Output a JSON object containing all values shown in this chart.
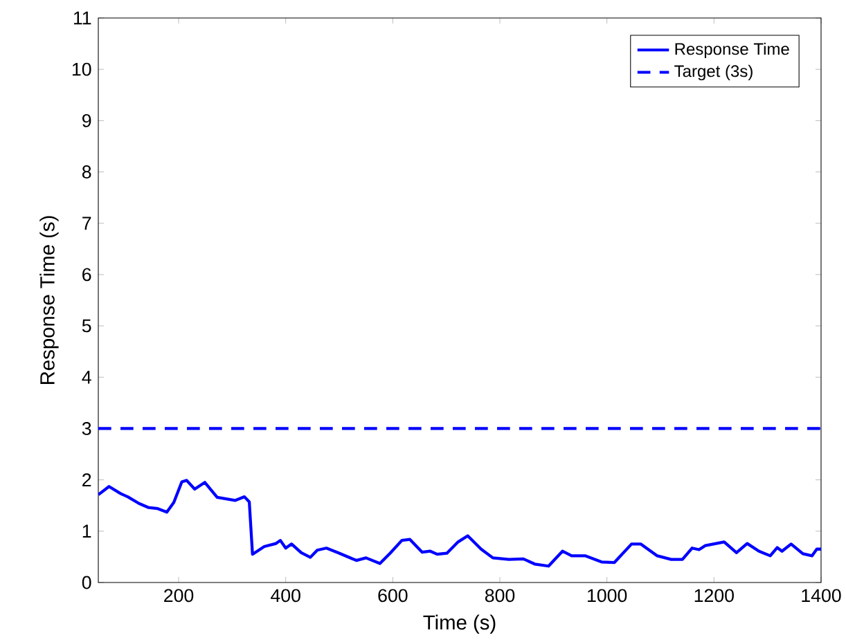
{
  "chart_data": {
    "type": "line",
    "xlabel": "Time (s)",
    "ylabel": "Response Time (s)",
    "xlim": [
      50,
      1400
    ],
    "ylim": [
      0,
      11
    ],
    "xticks": [
      200,
      400,
      600,
      800,
      1000,
      1200,
      1400
    ],
    "yticks": [
      0,
      1,
      2,
      3,
      4,
      5,
      6,
      7,
      8,
      9,
      10,
      11
    ],
    "grid": false,
    "legend": "top right",
    "marker": "none",
    "series": [
      {
        "name": "Response Time",
        "color": "#0000ff",
        "line_style": "solid",
        "x": [
          50,
          70,
          92,
          105,
          126,
          144,
          161,
          178,
          191,
          206,
          215,
          230,
          249,
          272,
          289,
          306,
          323,
          332,
          338,
          360,
          382,
          390,
          400,
          411,
          429,
          446,
          459,
          476,
          498,
          532,
          550,
          576,
          595,
          617,
          632,
          655,
          670,
          683,
          701,
          722,
          740,
          765,
          787,
          817,
          844,
          865,
          891,
          917,
          934,
          960,
          990,
          1014,
          1046,
          1063,
          1094,
          1120,
          1141,
          1159,
          1172,
          1184,
          1219,
          1242,
          1262,
          1284,
          1305,
          1318,
          1327,
          1344,
          1366,
          1383,
          1392,
          1400
        ],
        "values": [
          1.71,
          1.87,
          1.73,
          1.67,
          1.54,
          1.46,
          1.44,
          1.37,
          1.56,
          1.96,
          1.99,
          1.82,
          1.95,
          1.66,
          1.63,
          1.6,
          1.67,
          1.57,
          0.55,
          0.7,
          0.76,
          0.82,
          0.67,
          0.75,
          0.58,
          0.49,
          0.63,
          0.67,
          0.58,
          0.43,
          0.48,
          0.37,
          0.57,
          0.82,
          0.84,
          0.59,
          0.61,
          0.55,
          0.57,
          0.79,
          0.91,
          0.65,
          0.48,
          0.45,
          0.46,
          0.36,
          0.32,
          0.61,
          0.52,
          0.52,
          0.4,
          0.39,
          0.75,
          0.75,
          0.52,
          0.45,
          0.45,
          0.67,
          0.64,
          0.72,
          0.79,
          0.58,
          0.76,
          0.61,
          0.52,
          0.68,
          0.61,
          0.75,
          0.56,
          0.52,
          0.65,
          0.65
        ]
      },
      {
        "name": "Target (3s)",
        "color": "#0000ff",
        "line_style": "dashed",
        "x": [
          50,
          1400
        ],
        "values": [
          3,
          3
        ]
      }
    ]
  }
}
